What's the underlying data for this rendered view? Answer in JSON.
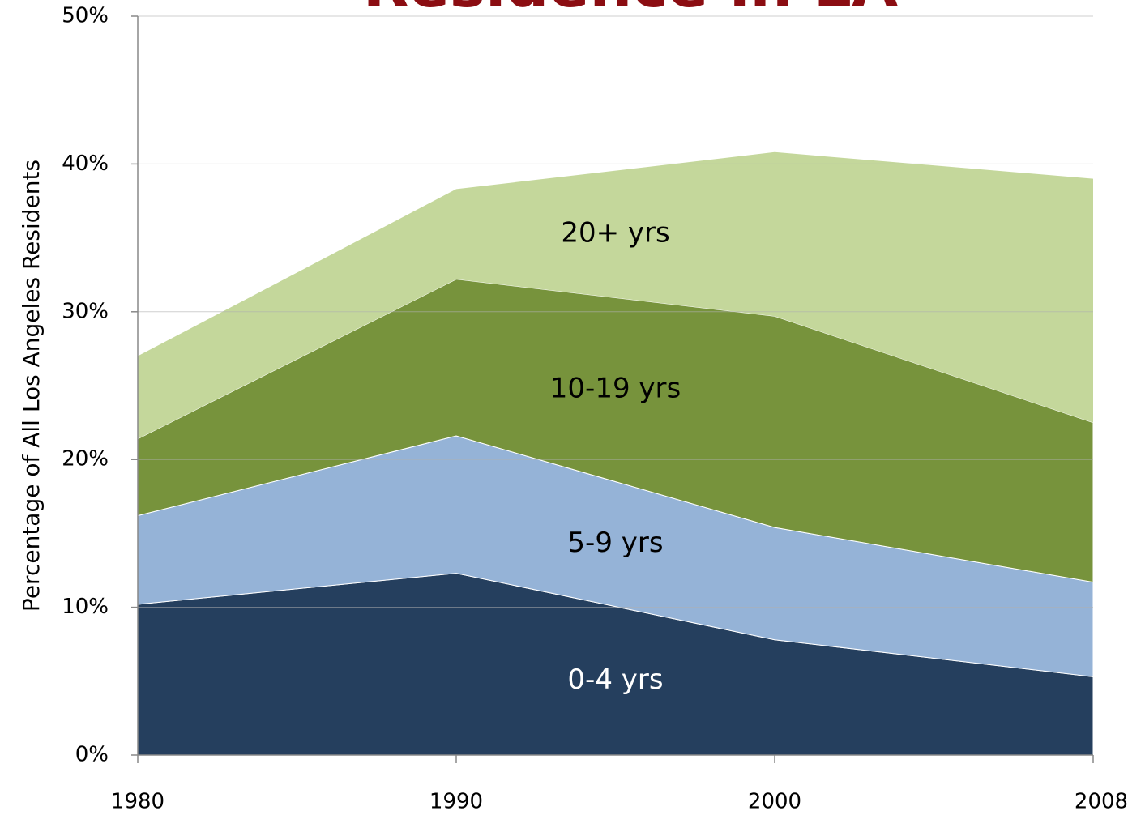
{
  "chart_data": {
    "type": "stacked_area",
    "title": "Residence in LA",
    "y_label": "Percentage of All Los Angeles Residents",
    "categories": [
      "1980",
      "1990",
      "2000",
      "2008"
    ],
    "series": [
      {
        "name": "0-4 yrs",
        "color": "#253f5e",
        "values": [
          10.2,
          12.3,
          7.8,
          5.3
        ]
      },
      {
        "name": "5-9 yrs",
        "color": "#95b3d7",
        "values": [
          6.0,
          9.3,
          7.6,
          6.4
        ]
      },
      {
        "name": "10-19 yrs",
        "color": "#77933c",
        "values": [
          5.2,
          10.6,
          14.3,
          10.8
        ]
      },
      {
        "name": "20+ yrs",
        "color": "#c4d79b",
        "values": [
          5.6,
          6.1,
          11.1,
          16.5
        ]
      }
    ],
    "ylim": [
      0,
      50
    ],
    "yticks": [
      {
        "value": 0,
        "label": "0%"
      },
      {
        "value": 10,
        "label": "10%"
      },
      {
        "value": 20,
        "label": "20%"
      },
      {
        "value": 30,
        "label": "30%"
      },
      {
        "value": 40,
        "label": "40%"
      },
      {
        "value": 50,
        "label": "50%"
      }
    ],
    "grid": true
  }
}
